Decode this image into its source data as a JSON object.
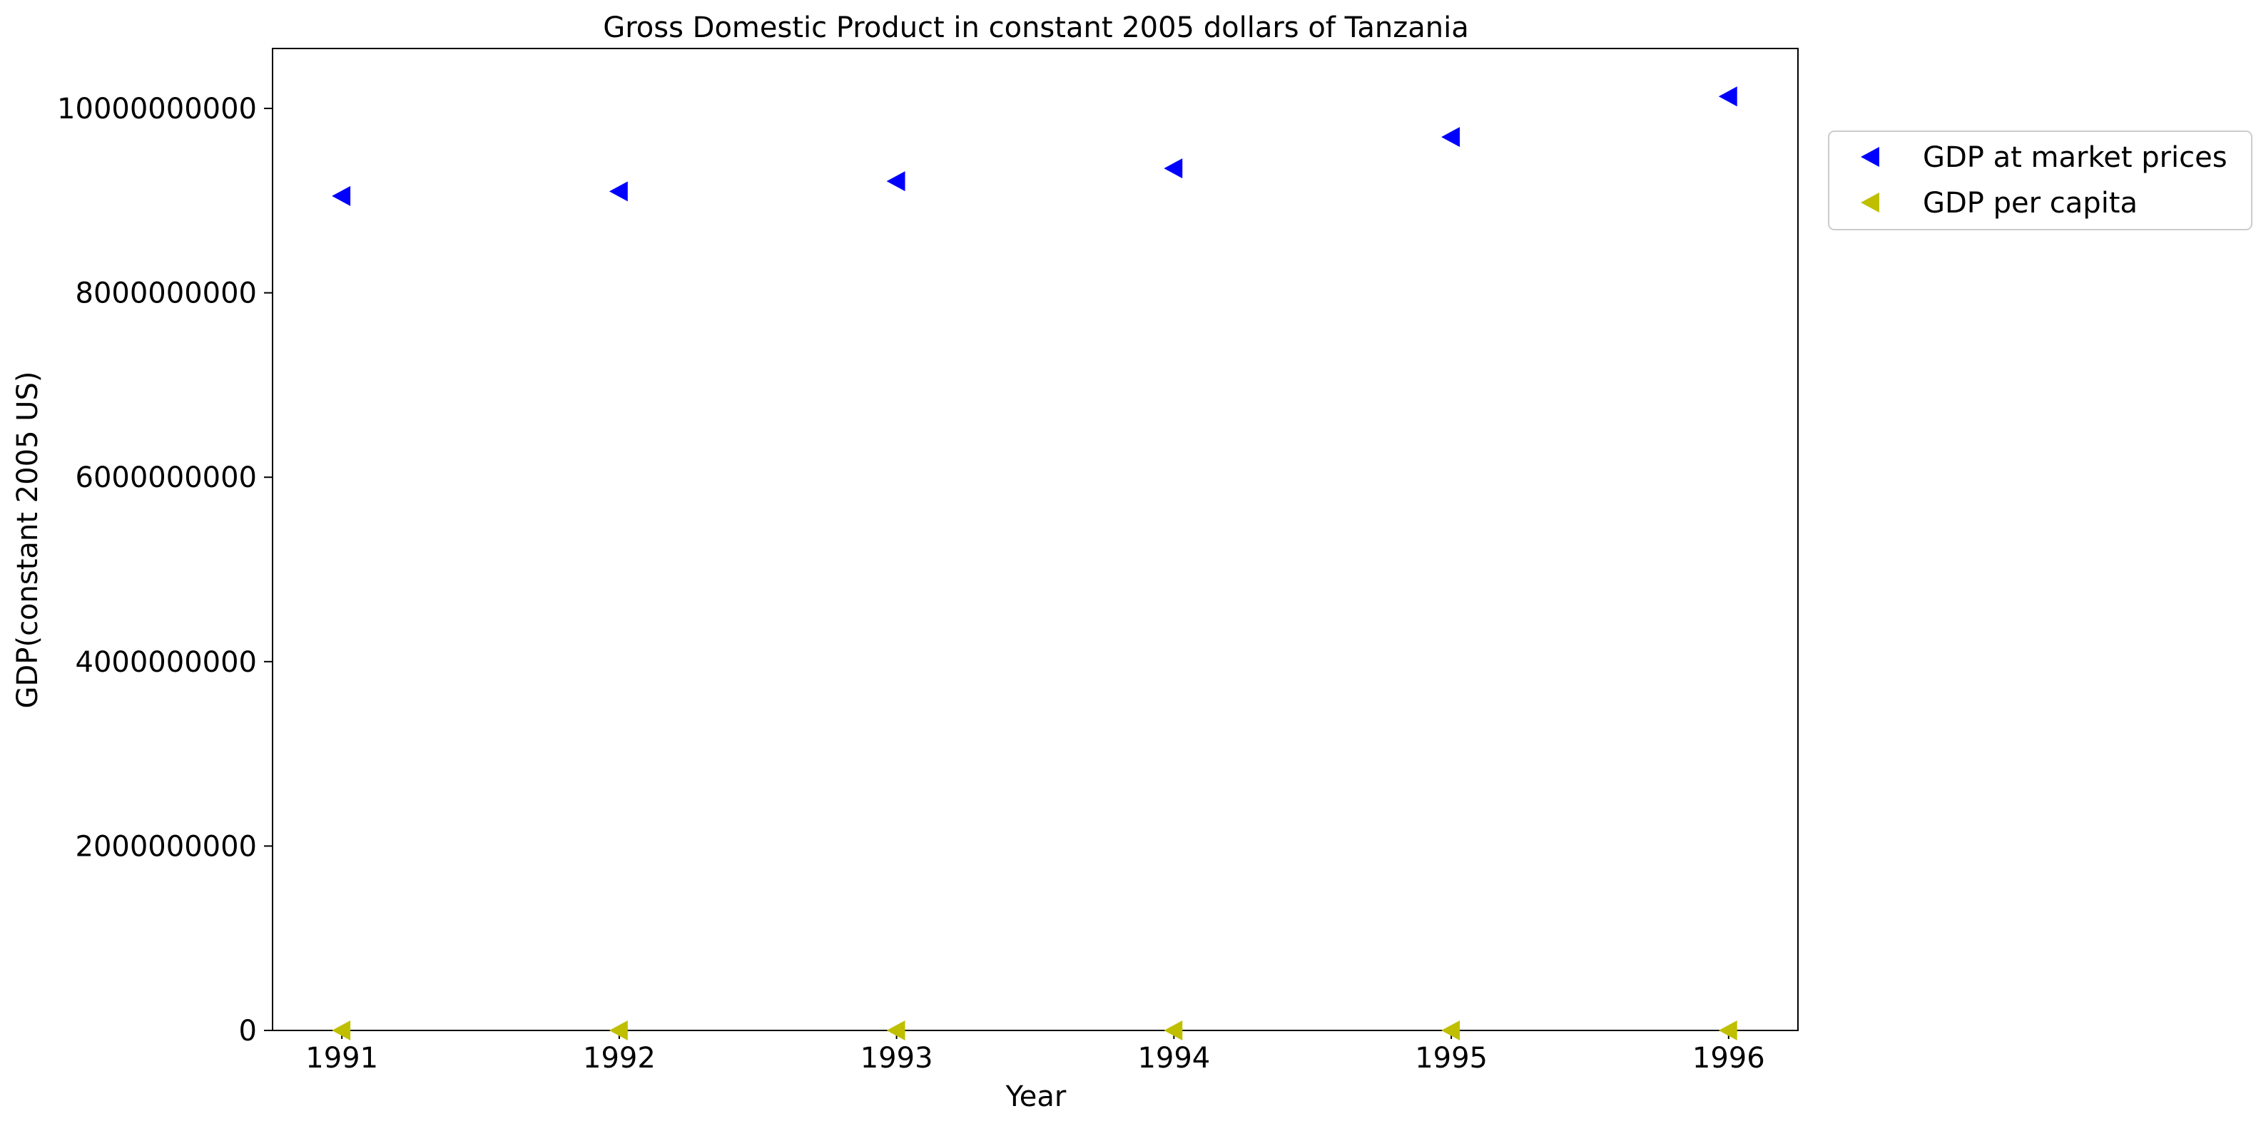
{
  "chart_data": {
    "type": "scatter",
    "title": "Gross Domestic Product in constant 2005 dollars of Tanzania",
    "xlabel": "Year",
    "ylabel": "GDP(constant 2005 US)",
    "x": [
      1991,
      1992,
      1993,
      1994,
      1995,
      1996
    ],
    "x_tick_labels": [
      "1991",
      "1992",
      "1993",
      "1994",
      "1995",
      "1996"
    ],
    "xlim": [
      1990.75,
      1996.25
    ],
    "y_ticks": [
      0,
      2000000000,
      4000000000,
      6000000000,
      8000000000,
      10000000000
    ],
    "y_tick_labels": [
      "0",
      "2000000000",
      "4000000000",
      "6000000000",
      "8000000000",
      "10000000000"
    ],
    "ylim": [
      0,
      10650000000
    ],
    "marker": "triangle-left",
    "grid": false,
    "legend_position": "outside-top-right",
    "series": [
      {
        "name": "GDP at market prices",
        "color": "#0000ff",
        "values": [
          9050000000,
          9100000000,
          9210000000,
          9350000000,
          9690000000,
          10130000000
        ]
      },
      {
        "name": "GDP per capita",
        "color": "#bfbf00",
        "values": [
          330,
          322,
          318,
          316,
          320,
          326
        ]
      }
    ]
  }
}
